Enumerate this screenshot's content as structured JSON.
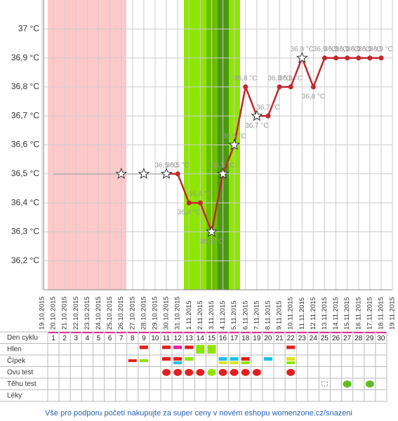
{
  "chart_data": {
    "type": "line",
    "categories": [
      "19.10.2015",
      "20.10.2015",
      "21.10.2015",
      "22.10.2015",
      "23.10.2015",
      "24.10.2015",
      "25.10.2015",
      "26.10.2015",
      "27.10.2015",
      "28.10.2015",
      "29.10.2015",
      "30.10.2015",
      "31.10.2015",
      "1.11.2015",
      "2.11.2015",
      "3.11.2015",
      "4.11.2015",
      "5.11.2015",
      "6.11.2015",
      "7.11.2015",
      "8.11.2015",
      "9.11.2015",
      "10.11.2015",
      "11.11.2015",
      "12.11.2015",
      "13.11.2015",
      "14.11.2015",
      "15.11.2015",
      "16.11.2015",
      "17.11.2015",
      "18.11.2015",
      "19.11.2015"
    ],
    "values": [
      null,
      null,
      null,
      null,
      null,
      null,
      null,
      36.5,
      null,
      36.5,
      null,
      36.5,
      36.5,
      36.4,
      36.4,
      36.3,
      36.5,
      36.6,
      36.8,
      36.7,
      36.7,
      36.8,
      36.8,
      36.9,
      36.8,
      36.9,
      36.9,
      36.9,
      36.9,
      36.9,
      36.9,
      null
    ],
    "value_labels": [
      null,
      null,
      null,
      null,
      null,
      null,
      null,
      null,
      null,
      null,
      null,
      "36,5 °C",
      "36,5 °C",
      "36,4 °C",
      "36,4 °C",
      "36,3 °C",
      "36,5 °C",
      "36,6 °C",
      "36,8 °C",
      "36,7 °C",
      "36,7 °C",
      "36,8 °C",
      "36,8 °C",
      "36,9 °C",
      "36,8 °C",
      "36,9 °C",
      "36,9 °C",
      "36,9 °C",
      "36,9 °C",
      "36,9 °C",
      "36,9 °C",
      null
    ],
    "markers": [
      null,
      null,
      null,
      null,
      null,
      null,
      null,
      "star",
      null,
      "star",
      null,
      "star",
      "dot",
      "dot",
      "dot",
      "star",
      "star",
      "star",
      "dot",
      "star",
      "dot",
      "dot",
      "dot",
      "star",
      "dot",
      "dot",
      "dot",
      "dot",
      "dot",
      "dot",
      "dot",
      null
    ],
    "color": "#c0282d",
    "ylim": [
      36.1,
      37.1
    ],
    "yticks": [
      {
        "value": 36.2,
        "label": "36,2 °C"
      },
      {
        "value": 36.3,
        "label": "36,3 °C"
      },
      {
        "value": 36.4,
        "label": "36,4 °C"
      },
      {
        "value": 36.5,
        "label": "36,5 °C"
      },
      {
        "value": 36.6,
        "label": "36,6 °C"
      },
      {
        "value": 36.7,
        "label": "36,7 °C"
      },
      {
        "value": 36.8,
        "label": "36,8 °C"
      },
      {
        "value": 36.9,
        "label": "36,9 °C"
      },
      {
        "value": 37,
        "label": "37 °C"
      }
    ],
    "grid": true
  },
  "table": {
    "rows": [
      "Den cyklu",
      "Hlen",
      "Čípek",
      "Ovu test",
      "Těhu test",
      "Léky"
    ],
    "cycle_days": [
      1,
      2,
      3,
      4,
      5,
      6,
      7,
      8,
      9,
      10,
      11,
      12,
      13,
      14,
      15,
      16,
      17,
      18,
      19,
      20,
      21,
      22,
      23,
      24,
      25,
      26,
      27,
      28,
      29,
      30
    ]
  },
  "footer": "Vše pro podporu početí nakupujte za super ceny v novém eshopu womenzone.cz/snazeni"
}
